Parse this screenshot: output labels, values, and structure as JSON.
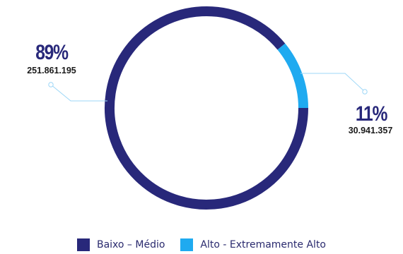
{
  "chart_data": {
    "type": "pie",
    "style": "donut",
    "slices": [
      {
        "name": "Baixo – Médio",
        "percent_label": "89%",
        "count_label": "251.861.195",
        "value": 251861195,
        "color": "#28287a"
      },
      {
        "name": "Alto - Extremamente Alto",
        "percent_label": "11%",
        "count_label": "30.941.357",
        "value": 30941357,
        "color": "#1faaf0"
      }
    ],
    "legend_position": "bottom"
  }
}
